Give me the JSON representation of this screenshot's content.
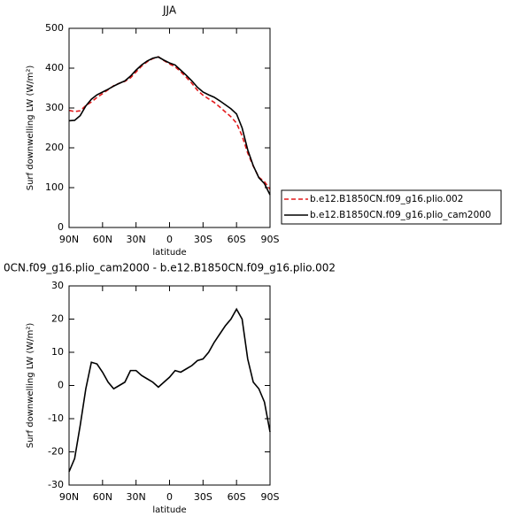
{
  "chart_data": [
    {
      "type": "line",
      "title": "JJA",
      "x_label": "latitude",
      "y_label": "Surf downwelling LW (W/m²)",
      "x": [
        90,
        85,
        80,
        75,
        70,
        65,
        60,
        55,
        50,
        45,
        40,
        35,
        30,
        25,
        20,
        15,
        10,
        5,
        0,
        -5,
        -10,
        -15,
        -20,
        -25,
        -30,
        -35,
        -40,
        -45,
        -50,
        -55,
        -60,
        -65,
        -70,
        -75,
        -80,
        -85,
        -90
      ],
      "series": [
        {
          "name": "b.e12.B1850CN.f09_g16.plio.002",
          "color": "#e31a1c",
          "dash": true,
          "values": [
            294,
            291,
            293,
            306,
            315,
            326.5,
            336,
            346,
            356,
            362,
            367,
            375.5,
            390.5,
            405,
            416,
            424,
            428.5,
            419,
            410.5,
            403.5,
            391,
            377,
            362,
            344.5,
            332,
            323,
            314,
            302.5,
            290,
            278,
            262,
            230,
            187,
            154,
            126,
            115,
            96
          ]
        },
        {
          "name": "b.e12.B1850CN.f09_g16.plio_cam2000",
          "color": "#000000",
          "dash": false,
          "values": [
            268,
            269,
            281,
            305,
            322,
            333,
            340,
            347,
            355,
            362,
            368,
            380,
            395,
            408,
            418,
            425,
            428,
            420,
            413,
            408,
            395,
            382,
            368,
            352,
            340,
            333,
            327,
            318,
            308,
            298,
            285,
            250,
            195,
            155,
            125,
            110,
            82
          ]
        }
      ],
      "xlim": [
        90,
        -90
      ],
      "xticks": [
        {
          "value": 90,
          "label": "90N"
        },
        {
          "value": 60,
          "label": "60N"
        },
        {
          "value": 30,
          "label": "30N"
        },
        0,
        {
          "value": -30,
          "label": "30S"
        },
        {
          "value": -60,
          "label": "60S"
        },
        {
          "value": -90,
          "label": "90S"
        }
      ],
      "ylim": [
        0,
        500
      ],
      "yticks": [
        0,
        100,
        200,
        300,
        400,
        500
      ],
      "legend": "right"
    },
    {
      "type": "line",
      "title": "0CN.f09_g16.plio_cam2000 - b.e12.B1850CN.f09_g16.plio.002",
      "x_label": "latitude",
      "y_label": "Surf downwelling LW (W/m²)",
      "x": [
        90,
        85,
        80,
        75,
        70,
        65,
        60,
        55,
        50,
        45,
        40,
        35,
        30,
        25,
        20,
        15,
        10,
        5,
        0,
        -5,
        -10,
        -15,
        -20,
        -25,
        -30,
        -35,
        -40,
        -45,
        -50,
        -55,
        -60,
        -65,
        -70,
        -75,
        -80,
        -85,
        -90
      ],
      "series": [
        {
          "color": "#000000",
          "dash": false,
          "values": [
            -26,
            -22,
            -12,
            -1,
            7,
            6.5,
            4,
            1,
            -1,
            0,
            1,
            4.5,
            4.5,
            3,
            2,
            1,
            -0.5,
            1,
            2.5,
            4.5,
            4,
            5,
            6,
            7.5,
            8,
            10,
            13,
            15.5,
            18,
            20,
            23,
            20,
            8,
            1,
            -1,
            -5,
            -14
          ]
        }
      ],
      "xlim": [
        90,
        -90
      ],
      "xticks": [
        {
          "value": 90,
          "label": "90N"
        },
        {
          "value": 60,
          "label": "60N"
        },
        {
          "value": 30,
          "label": "30N"
        },
        0,
        {
          "value": -30,
          "label": "30S"
        },
        {
          "value": -60,
          "label": "60S"
        },
        {
          "value": -90,
          "label": "90S"
        }
      ],
      "ylim": [
        -30,
        30
      ],
      "yticks": [
        -30,
        -20,
        -10,
        0,
        10,
        20,
        30
      ]
    }
  ]
}
